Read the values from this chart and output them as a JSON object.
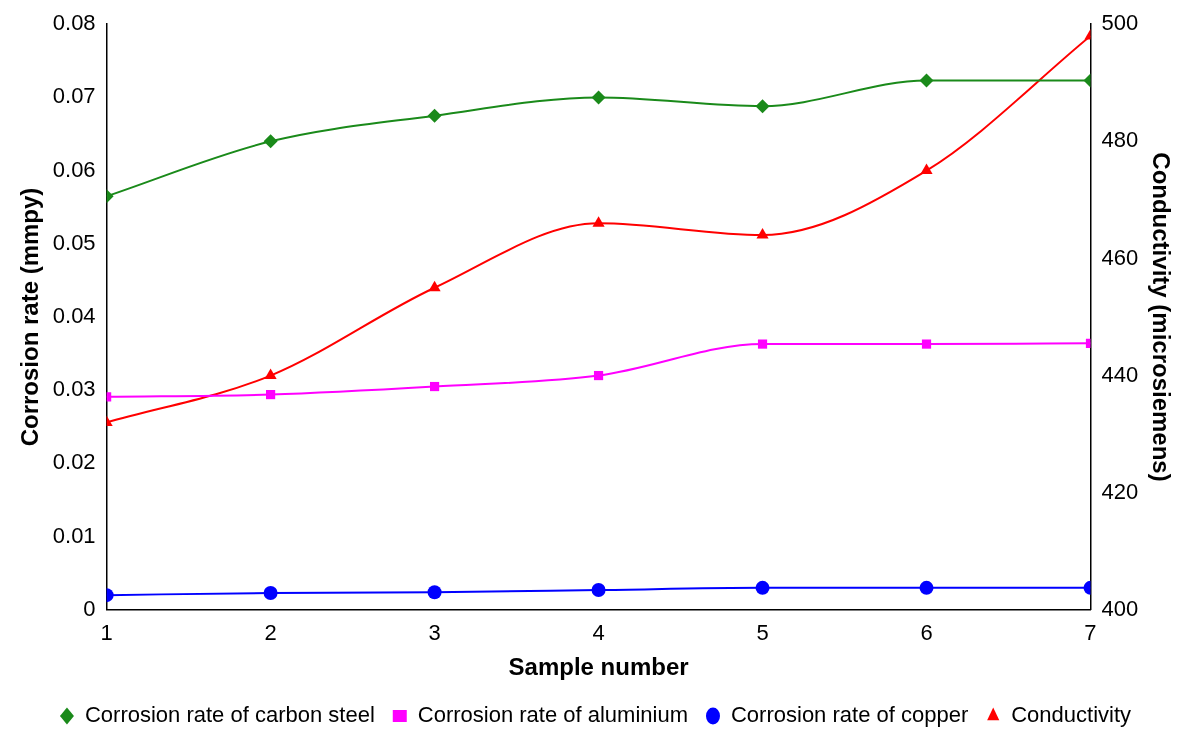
{
  "chart_data": {
    "type": "line",
    "xlabel": "Sample number",
    "ylabel": "Corrosion rate (mmpy)",
    "y2label": "Conductivity (microsiemens)",
    "x": [
      1,
      2,
      3,
      4,
      5,
      6,
      7
    ],
    "xlim": [
      1,
      7
    ],
    "xticks": [
      1,
      2,
      3,
      4,
      5,
      6,
      7
    ],
    "ylim": [
      0,
      0.08
    ],
    "yticks": [
      0,
      0.01,
      0.02,
      0.03,
      0.04,
      0.05,
      0.06,
      0.07,
      0.08
    ],
    "y2lim": [
      400,
      500
    ],
    "y2ticks": [
      400,
      420,
      440,
      460,
      480,
      500
    ],
    "grid": false,
    "legend": "bottom",
    "series": [
      {
        "name": "Corrosion rate of carbon steel",
        "color": "#1a8a1a",
        "marker": "diamond",
        "values": [
          0.0565,
          0.064,
          0.0675,
          0.07,
          0.0688,
          0.0723,
          0.0723
        ]
      },
      {
        "name": "Corrosion rate of aluminium",
        "color": "#ff00ff",
        "marker": "square",
        "values": [
          0.0291,
          0.0294,
          0.0305,
          0.032,
          0.0363,
          0.0363,
          0.0364
        ]
      },
      {
        "name": "Corrosion rate of copper",
        "color": "#0000ff",
        "marker": "circle",
        "values": [
          0.002,
          0.0023,
          0.0024,
          0.0027,
          0.003,
          0.003,
          0.003
        ]
      },
      {
        "name": "Conductivity",
        "color": "#ff0000",
        "marker": "triangle",
        "axis": "y2",
        "values": [
          432,
          440,
          455,
          466,
          464,
          475,
          498
        ]
      }
    ]
  }
}
